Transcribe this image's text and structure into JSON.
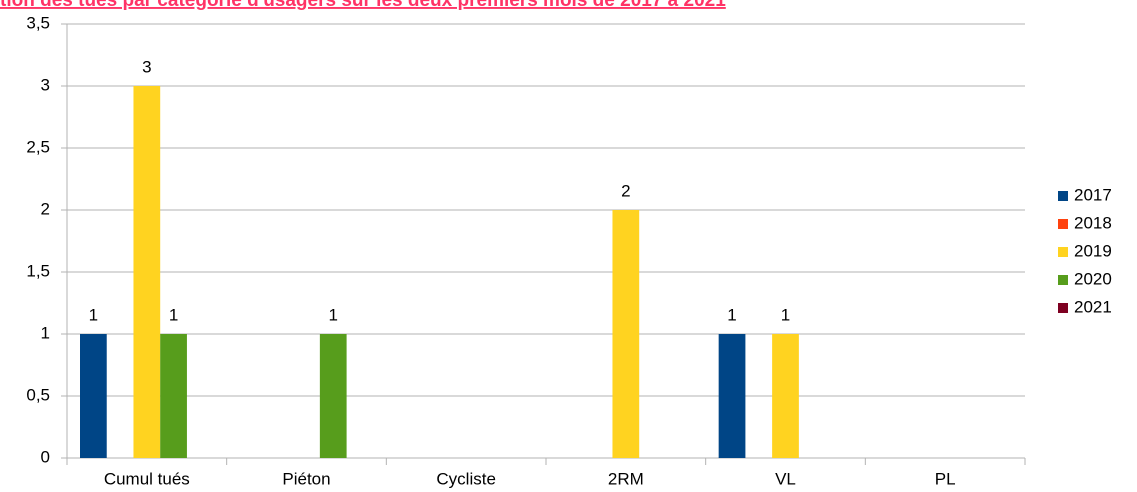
{
  "chart_data": {
    "type": "bar",
    "title": "tion des tués par catégorie d'usagers sur les deux premiers mois de 2017 à 2021",
    "categories": [
      "Cumul tués",
      "Piéton",
      "Cycliste",
      "2RM",
      "VL",
      "PL"
    ],
    "series": [
      {
        "name": "2017",
        "color": "#004586",
        "values": [
          1,
          null,
          null,
          null,
          1,
          null
        ]
      },
      {
        "name": "2018",
        "color": "#ff420e",
        "values": [
          null,
          null,
          null,
          null,
          null,
          null
        ]
      },
      {
        "name": "2019",
        "color": "#ffd320",
        "values": [
          3,
          null,
          null,
          2,
          1,
          null
        ]
      },
      {
        "name": "2020",
        "color": "#579d1c",
        "values": [
          1,
          1,
          null,
          null,
          null,
          null
        ]
      },
      {
        "name": "2021",
        "color": "#7e0021",
        "values": [
          null,
          null,
          null,
          null,
          null,
          null
        ]
      }
    ],
    "ylim": [
      0,
      3.5
    ],
    "yticks": [
      0,
      {
        "value": 0.5,
        "label": "0,5"
      },
      1,
      {
        "value": 1.5,
        "label": "1,5"
      },
      2,
      {
        "value": 2.5,
        "label": "2,5"
      },
      3,
      {
        "value": 3.5,
        "label": "3,5"
      }
    ],
    "grid": true,
    "legend": "right"
  }
}
